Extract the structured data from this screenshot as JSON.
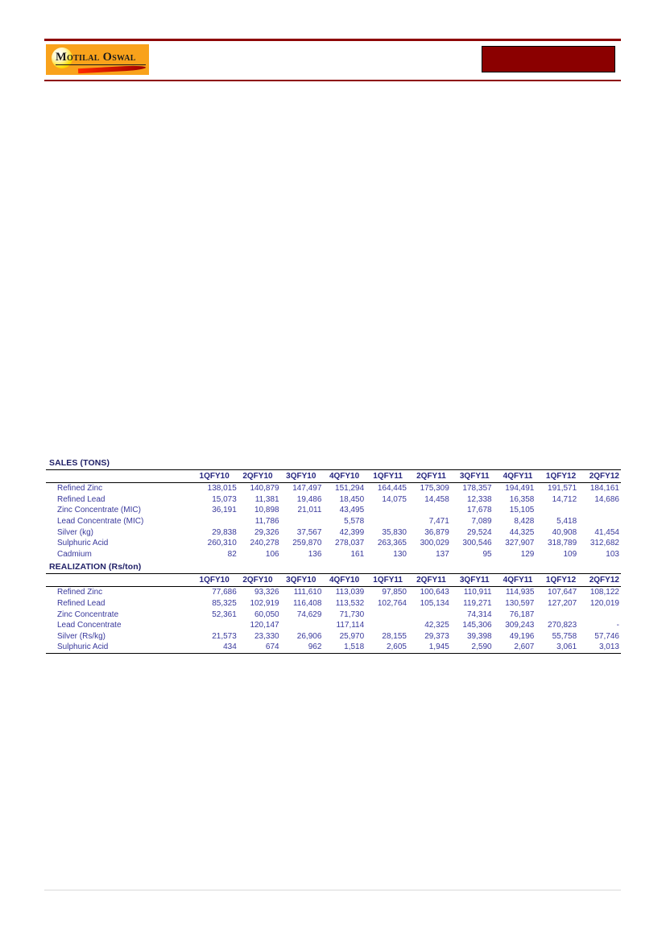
{
  "header": {
    "logo_text": "Motilal Oswal",
    "brand_colors": {
      "maroon": "#8B0000",
      "orange": "#F9A21B",
      "table_text": "#38389B"
    }
  },
  "tables": [
    {
      "title": "SALES (TONS)",
      "columns": [
        "1QFY10",
        "2QFY10",
        "3QFY10",
        "4QFY10",
        "1QFY11",
        "2QFY11",
        "3QFY11",
        "4QFY11",
        "1QFY12",
        "2QFY12"
      ],
      "rows": [
        {
          "label": "Refined Zinc",
          "values": [
            "138,015",
            "140,879",
            "147,497",
            "151,294",
            "164,445",
            "175,309",
            "178,357",
            "194,491",
            "191,571",
            "184,161"
          ]
        },
        {
          "label": "Refined Lead",
          "values": [
            "15,073",
            "11,381",
            "19,486",
            "18,450",
            "14,075",
            "14,458",
            "12,338",
            "16,358",
            "14,712",
            "14,686"
          ]
        },
        {
          "label": "Zinc Concentrate (MIC)",
          "values": [
            "36,191",
            "10,898",
            "21,011",
            "43,495",
            "",
            "",
            "17,678",
            "15,105",
            "",
            ""
          ]
        },
        {
          "label": "Lead Concentrate (MIC)",
          "values": [
            "",
            "11,786",
            "",
            "5,578",
            "",
            "7,471",
            "7,089",
            "8,428",
            "5,418",
            ""
          ]
        },
        {
          "label": "Silver (kg)",
          "values": [
            "29,838",
            "29,326",
            "37,567",
            "42,399",
            "35,830",
            "36,879",
            "29,524",
            "44,325",
            "40,908",
            "41,454"
          ]
        },
        {
          "label": "Sulphuric Acid",
          "values": [
            "260,310",
            "240,278",
            "259,870",
            "278,037",
            "263,365",
            "300,029",
            "300,546",
            "327,907",
            "318,789",
            "312,682"
          ]
        },
        {
          "label": "Cadmium",
          "values": [
            "82",
            "106",
            "136",
            "161",
            "130",
            "137",
            "95",
            "129",
            "109",
            "103"
          ]
        }
      ]
    },
    {
      "title": "REALIZATION (Rs/ton)",
      "columns": [
        "1QFY10",
        "2QFY10",
        "3QFY10",
        "4QFY10",
        "1QFY11",
        "2QFY11",
        "3QFY11",
        "4QFY11",
        "1QFY12",
        "2QFY12"
      ],
      "rows": [
        {
          "label": "Refined Zinc",
          "values": [
            "77,686",
            "93,326",
            "111,610",
            "113,039",
            "97,850",
            "100,643",
            "110,911",
            "114,935",
            "107,647",
            "108,122"
          ]
        },
        {
          "label": "Refined Lead",
          "values": [
            "85,325",
            "102,919",
            "116,408",
            "113,532",
            "102,764",
            "105,134",
            "119,271",
            "130,597",
            "127,207",
            "120,019"
          ]
        },
        {
          "label": "Zinc Concentrate",
          "values": [
            "52,361",
            "60,050",
            "74,629",
            "71,730",
            "",
            "",
            "74,314",
            "76,187",
            "",
            ""
          ]
        },
        {
          "label": "Lead Concentrate",
          "values": [
            "",
            "120,147",
            "",
            "117,114",
            "",
            "42,325",
            "145,306",
            "309,243",
            "270,823",
            "-"
          ]
        },
        {
          "label": "Silver (Rs/kg)",
          "values": [
            "21,573",
            "23,330",
            "26,906",
            "25,970",
            "28,155",
            "29,373",
            "39,398",
            "49,196",
            "55,758",
            "57,746"
          ]
        },
        {
          "label": "Sulphuric Acid",
          "values": [
            "434",
            "674",
            "962",
            "1,518",
            "2,605",
            "1,945",
            "2,590",
            "2,607",
            "3,061",
            "3,013"
          ]
        }
      ]
    }
  ]
}
